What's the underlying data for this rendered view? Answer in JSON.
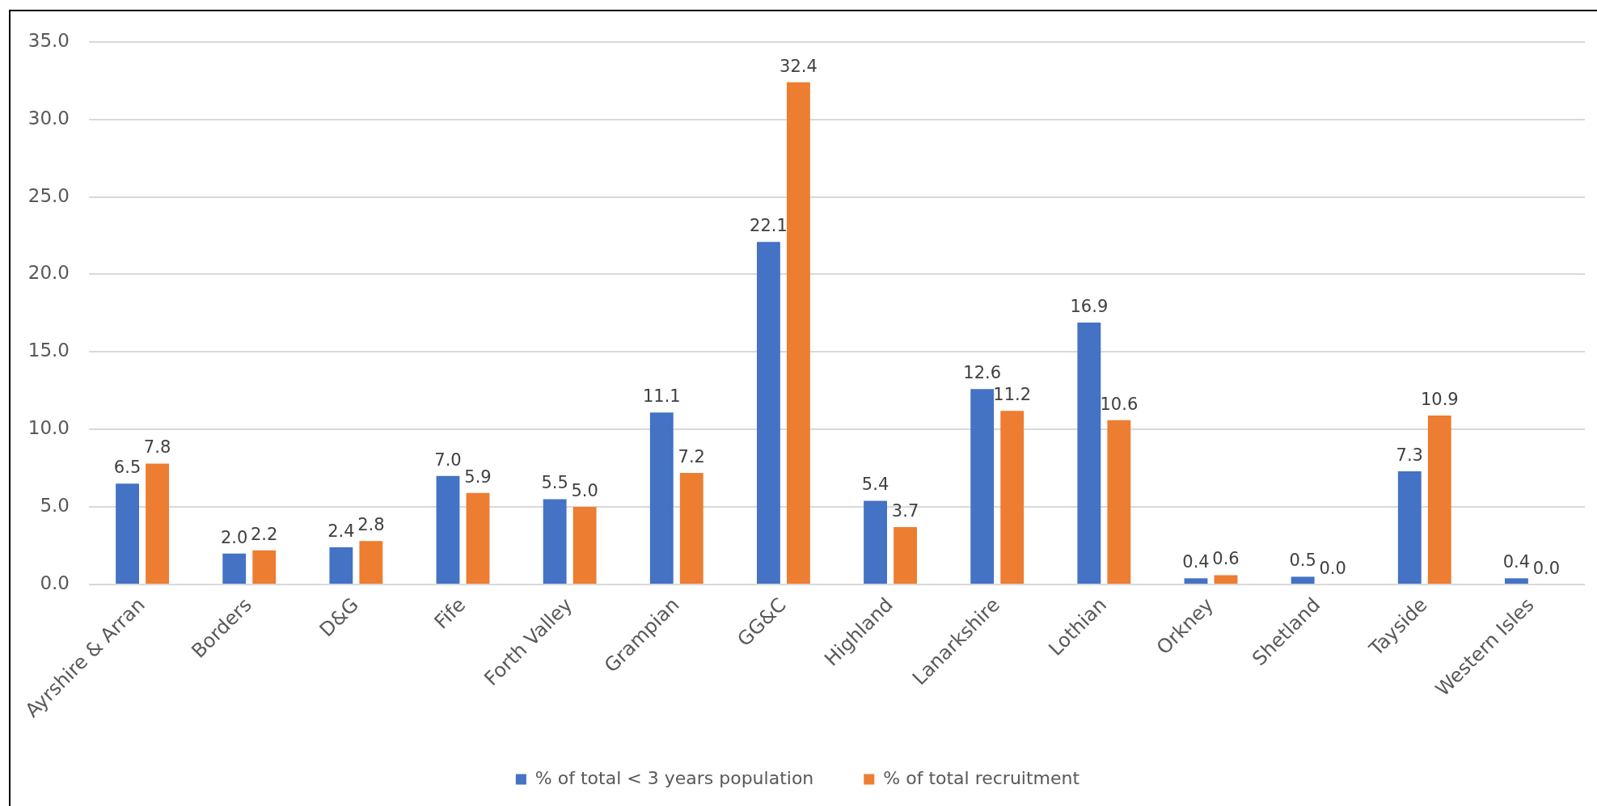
{
  "chart_data": {
    "type": "bar",
    "categories": [
      "Ayrshire & Arran",
      "Borders",
      "D&G",
      "Fife",
      "Forth Valley",
      "Grampian",
      "GG&C",
      "Highland",
      "Lanarkshire",
      "Lothian",
      "Orkney",
      "Shetland",
      "Tayside",
      "Western Isles"
    ],
    "series": [
      {
        "name": "% of total < 3 years population",
        "color": "#4472c4",
        "values": [
          6.5,
          2.0,
          2.4,
          7.0,
          5.5,
          11.1,
          22.1,
          5.4,
          12.6,
          16.9,
          0.4,
          0.5,
          7.3,
          0.4
        ],
        "value_labels": [
          "6.5",
          "2.0",
          "2.4",
          "7.0",
          "5.5",
          "11.1",
          "22.1",
          "5.4",
          "12.6",
          "16.9",
          "0.4",
          "0.5",
          "7.3",
          "0.4"
        ]
      },
      {
        "name": "% of total recruitment",
        "color": "#ed7d31",
        "values": [
          7.8,
          2.2,
          2.8,
          5.9,
          5.0,
          7.2,
          32.4,
          3.7,
          11.2,
          10.6,
          0.6,
          0.0,
          10.9,
          0.0
        ],
        "value_labels": [
          "7.8",
          "2.2",
          "2.8",
          "5.9",
          "5.0",
          "7.2",
          "32.4",
          "3.7",
          "11.2",
          "10.6",
          "0.6",
          "0.0",
          "10.9",
          "0.0"
        ]
      }
    ],
    "ylim": [
      0,
      35
    ],
    "yticks": [
      {
        "value": 0,
        "label": "0.0"
      },
      {
        "value": 5,
        "label": "5.0"
      },
      {
        "value": 10,
        "label": "10.0"
      },
      {
        "value": 15,
        "label": "15.0"
      },
      {
        "value": 20,
        "label": "20.0"
      },
      {
        "value": 25,
        "label": "25.0"
      },
      {
        "value": 30,
        "label": "30.0"
      },
      {
        "value": 35,
        "label": "35.0"
      }
    ],
    "grid": "y",
    "legend": "bottom"
  }
}
